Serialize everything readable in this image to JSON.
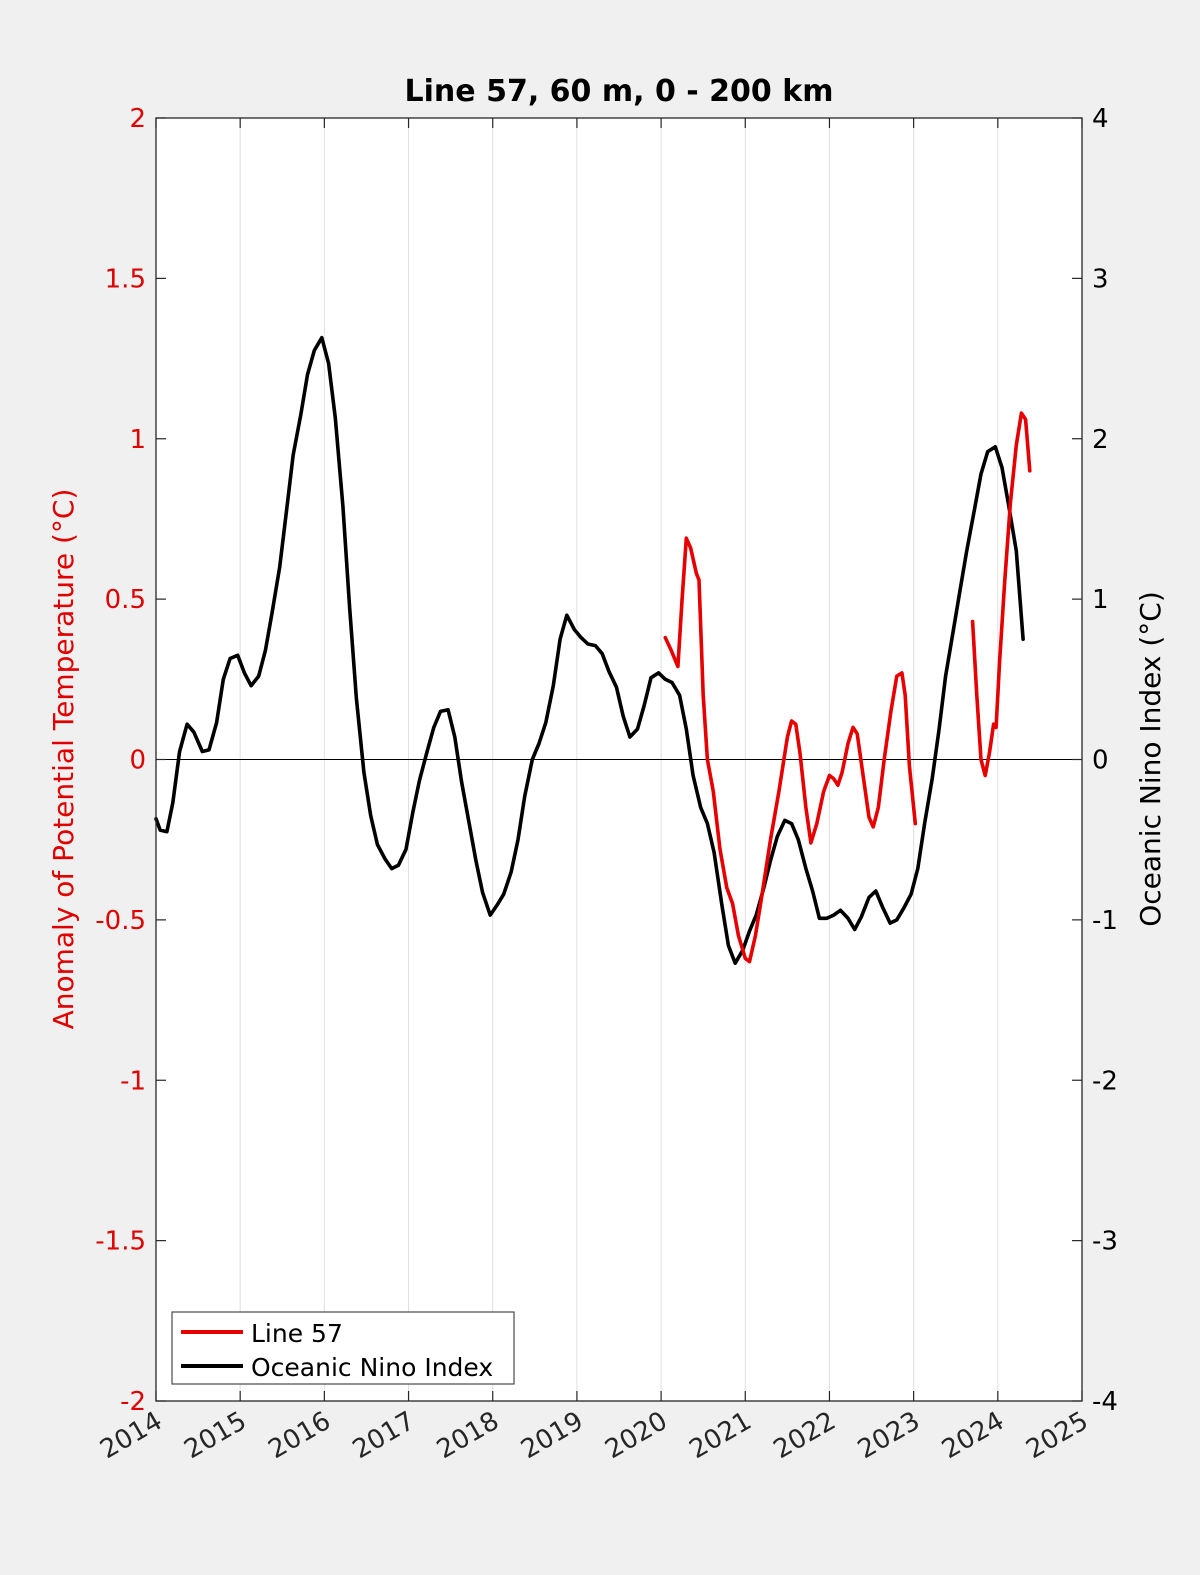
{
  "chart_data": {
    "type": "line",
    "title": "Line 57, 60 m, 0 - 200 km",
    "ylabel_left": "Anomaly of Potential Temperature (°C)",
    "ylabel_right": "Oceanic Nino Index (°C)",
    "xlim": [
      2014,
      2025
    ],
    "ylim_left": [
      -2,
      2
    ],
    "ylim_right": [
      -4,
      4
    ],
    "xticks": [
      "2014",
      "2015",
      "2016",
      "2017",
      "2018",
      "2019",
      "2020",
      "2021",
      "2022",
      "2023",
      "2024",
      "2025"
    ],
    "yticks_left": [
      "2",
      "1.5",
      "1",
      "0.5",
      "0",
      "-0.5",
      "-1",
      "-1.5",
      "-2"
    ],
    "yticks_right": [
      "4",
      "3",
      "2",
      "1",
      "0",
      "-1",
      "-2",
      "-3",
      "-4"
    ],
    "grid": "vertical",
    "legend_position": "bottom-left",
    "colors": {
      "left_axis": "#e00000",
      "right_axis": "#000000",
      "line57": "#e60000",
      "oni": "#000000"
    },
    "series": [
      {
        "name": "Line 57",
        "axis": "left",
        "color": "#e60000",
        "segments": [
          [
            [
              2020.05,
              0.38
            ],
            [
              2020.12,
              0.34
            ],
            [
              2020.2,
              0.29
            ],
            [
              2020.25,
              0.5
            ],
            [
              2020.3,
              0.69
            ],
            [
              2020.35,
              0.66
            ],
            [
              2020.42,
              0.58
            ],
            [
              2020.45,
              0.56
            ],
            [
              2020.5,
              0.2
            ],
            [
              2020.55,
              0.0
            ],
            [
              2020.62,
              -0.1
            ],
            [
              2020.7,
              -0.28
            ],
            [
              2020.78,
              -0.4
            ],
            [
              2020.85,
              -0.45
            ],
            [
              2020.92,
              -0.55
            ],
            [
              2021.0,
              -0.62
            ],
            [
              2021.05,
              -0.63
            ],
            [
              2021.12,
              -0.55
            ],
            [
              2021.2,
              -0.42
            ],
            [
              2021.3,
              -0.25
            ],
            [
              2021.4,
              -0.1
            ],
            [
              2021.5,
              0.07
            ],
            [
              2021.55,
              0.12
            ],
            [
              2021.6,
              0.11
            ],
            [
              2021.65,
              0.02
            ],
            [
              2021.72,
              -0.15
            ],
            [
              2021.78,
              -0.26
            ],
            [
              2021.85,
              -0.2
            ],
            [
              2021.93,
              -0.1
            ],
            [
              2022.0,
              -0.05
            ],
            [
              2022.05,
              -0.06
            ],
            [
              2022.1,
              -0.08
            ],
            [
              2022.15,
              -0.04
            ],
            [
              2022.22,
              0.05
            ],
            [
              2022.28,
              0.1
            ],
            [
              2022.33,
              0.08
            ],
            [
              2022.4,
              -0.05
            ],
            [
              2022.47,
              -0.18
            ],
            [
              2022.52,
              -0.21
            ],
            [
              2022.58,
              -0.15
            ],
            [
              2022.65,
              0.0
            ],
            [
              2022.73,
              0.15
            ],
            [
              2022.8,
              0.26
            ],
            [
              2022.86,
              0.27
            ],
            [
              2022.9,
              0.2
            ],
            [
              2022.95,
              -0.02
            ],
            [
              2023.02,
              -0.2
            ]
          ],
          [
            [
              2023.7,
              0.43
            ],
            [
              2023.75,
              0.2
            ],
            [
              2023.8,
              0.0
            ],
            [
              2023.85,
              -0.05
            ],
            [
              2023.9,
              0.02
            ],
            [
              2023.95,
              0.11
            ],
            [
              2023.98,
              0.1
            ],
            [
              2024.02,
              0.3
            ],
            [
              2024.08,
              0.55
            ],
            [
              2024.15,
              0.8
            ],
            [
              2024.22,
              0.98
            ],
            [
              2024.28,
              1.08
            ],
            [
              2024.33,
              1.06
            ],
            [
              2024.38,
              0.9
            ]
          ]
        ]
      },
      {
        "name": "Oceanic Nino Index",
        "axis": "right",
        "color": "#000000",
        "segments": [
          [
            [
              2014.0,
              -0.37
            ],
            [
              2014.05,
              -0.44
            ],
            [
              2014.13,
              -0.45
            ],
            [
              2014.2,
              -0.27
            ],
            [
              2014.28,
              0.05
            ],
            [
              2014.37,
              0.22
            ],
            [
              2014.45,
              0.17
            ],
            [
              2014.55,
              0.05
            ],
            [
              2014.63,
              0.06
            ],
            [
              2014.72,
              0.23
            ],
            [
              2014.8,
              0.5
            ],
            [
              2014.88,
              0.63
            ],
            [
              2014.97,
              0.65
            ],
            [
              2015.05,
              0.54
            ],
            [
              2015.13,
              0.46
            ],
            [
              2015.22,
              0.52
            ],
            [
              2015.3,
              0.68
            ],
            [
              2015.38,
              0.92
            ],
            [
              2015.47,
              1.2
            ],
            [
              2015.55,
              1.55
            ],
            [
              2015.63,
              1.9
            ],
            [
              2015.72,
              2.15
            ],
            [
              2015.8,
              2.4
            ],
            [
              2015.88,
              2.55
            ],
            [
              2015.97,
              2.63
            ],
            [
              2016.05,
              2.47
            ],
            [
              2016.13,
              2.13
            ],
            [
              2016.22,
              1.58
            ],
            [
              2016.3,
              0.95
            ],
            [
              2016.38,
              0.38
            ],
            [
              2016.47,
              -0.08
            ],
            [
              2016.55,
              -0.35
            ],
            [
              2016.63,
              -0.53
            ],
            [
              2016.72,
              -0.62
            ],
            [
              2016.8,
              -0.68
            ],
            [
              2016.88,
              -0.66
            ],
            [
              2016.97,
              -0.56
            ],
            [
              2017.05,
              -0.33
            ],
            [
              2017.13,
              -0.13
            ],
            [
              2017.22,
              0.05
            ],
            [
              2017.3,
              0.2
            ],
            [
              2017.38,
              0.3
            ],
            [
              2017.47,
              0.31
            ],
            [
              2017.55,
              0.14
            ],
            [
              2017.63,
              -0.14
            ],
            [
              2017.72,
              -0.4
            ],
            [
              2017.8,
              -0.63
            ],
            [
              2017.88,
              -0.83
            ],
            [
              2017.97,
              -0.97
            ],
            [
              2018.05,
              -0.91
            ],
            [
              2018.13,
              -0.84
            ],
            [
              2018.22,
              -0.7
            ],
            [
              2018.3,
              -0.5
            ],
            [
              2018.38,
              -0.23
            ],
            [
              2018.47,
              0.0
            ],
            [
              2018.55,
              0.1
            ],
            [
              2018.63,
              0.23
            ],
            [
              2018.72,
              0.46
            ],
            [
              2018.8,
              0.75
            ],
            [
              2018.88,
              0.9
            ],
            [
              2018.97,
              0.81
            ],
            [
              2019.05,
              0.76
            ],
            [
              2019.13,
              0.72
            ],
            [
              2019.22,
              0.71
            ],
            [
              2019.3,
              0.66
            ],
            [
              2019.38,
              0.55
            ],
            [
              2019.47,
              0.45
            ],
            [
              2019.55,
              0.27
            ],
            [
              2019.63,
              0.14
            ],
            [
              2019.72,
              0.19
            ],
            [
              2019.8,
              0.34
            ],
            [
              2019.88,
              0.51
            ],
            [
              2019.97,
              0.54
            ],
            [
              2020.05,
              0.5
            ],
            [
              2020.13,
              0.48
            ],
            [
              2020.22,
              0.4
            ],
            [
              2020.3,
              0.19
            ],
            [
              2020.38,
              -0.1
            ],
            [
              2020.47,
              -0.3
            ],
            [
              2020.55,
              -0.4
            ],
            [
              2020.63,
              -0.58
            ],
            [
              2020.72,
              -0.9
            ],
            [
              2020.8,
              -1.16
            ],
            [
              2020.88,
              -1.27
            ],
            [
              2020.97,
              -1.19
            ],
            [
              2021.05,
              -1.07
            ],
            [
              2021.13,
              -0.97
            ],
            [
              2021.22,
              -0.8
            ],
            [
              2021.3,
              -0.63
            ],
            [
              2021.38,
              -0.48
            ],
            [
              2021.47,
              -0.38
            ],
            [
              2021.55,
              -0.4
            ],
            [
              2021.63,
              -0.5
            ],
            [
              2021.72,
              -0.68
            ],
            [
              2021.8,
              -0.82
            ],
            [
              2021.88,
              -0.99
            ],
            [
              2021.97,
              -0.99
            ],
            [
              2022.05,
              -0.97
            ],
            [
              2022.13,
              -0.94
            ],
            [
              2022.22,
              -0.99
            ],
            [
              2022.3,
              -1.06
            ],
            [
              2022.38,
              -0.98
            ],
            [
              2022.47,
              -0.86
            ],
            [
              2022.55,
              -0.82
            ],
            [
              2022.63,
              -0.92
            ],
            [
              2022.72,
              -1.02
            ],
            [
              2022.8,
              -1.0
            ],
            [
              2022.88,
              -0.93
            ],
            [
              2022.97,
              -0.84
            ],
            [
              2023.05,
              -0.68
            ],
            [
              2023.13,
              -0.4
            ],
            [
              2023.22,
              -0.12
            ],
            [
              2023.3,
              0.18
            ],
            [
              2023.38,
              0.52
            ],
            [
              2023.47,
              0.8
            ],
            [
              2023.55,
              1.05
            ],
            [
              2023.63,
              1.3
            ],
            [
              2023.72,
              1.55
            ],
            [
              2023.8,
              1.78
            ],
            [
              2023.88,
              1.92
            ],
            [
              2023.97,
              1.95
            ],
            [
              2024.05,
              1.82
            ],
            [
              2024.13,
              1.58
            ],
            [
              2024.22,
              1.3
            ],
            [
              2024.3,
              0.75
            ]
          ]
        ]
      }
    ]
  }
}
